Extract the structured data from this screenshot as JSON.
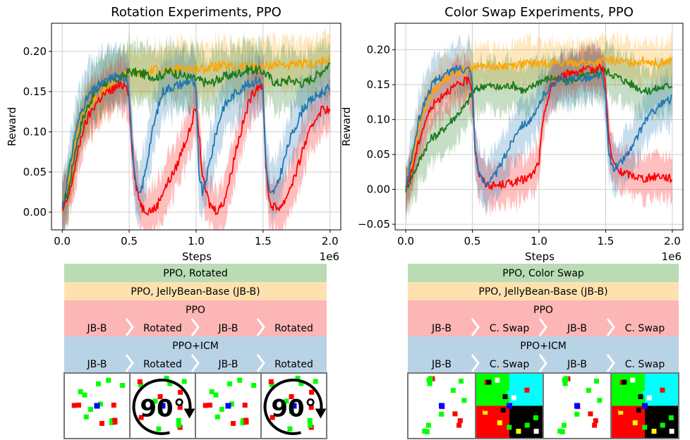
{
  "colors": {
    "ppo": "#ff0000",
    "ppo_icm": "#1f77b4",
    "jbb": "#ffa500",
    "variant": "#1a7a1a",
    "band_green": "#b9dcb4",
    "band_orange": "#fde2b0",
    "band_red": "#fdb6b6",
    "band_blue": "#b9d3e6",
    "grid_white": "#ffffff",
    "grid_green": "#00ff00",
    "grid_red": "#ff0000",
    "grid_blue": "#0000ff",
    "grid_cyan": "#00ffff",
    "grid_black": "#000000",
    "grid_yellow": "#ffff00"
  },
  "chart_data": [
    {
      "type": "line",
      "title": "Rotation Experiments, PPO",
      "xlabel": "Steps",
      "ylabel": "Reward",
      "x_scale_label": "1e6",
      "xlim": [
        -0.08,
        2.08
      ],
      "ylim": [
        -0.022,
        0.235
      ],
      "xticks": [
        0.0,
        0.5,
        1.0,
        1.5,
        2.0
      ],
      "xtick_labels": [
        "0.0",
        "0.5",
        "1.0",
        "1.5",
        "2.0"
      ],
      "yticks": [
        0.0,
        0.05,
        0.1,
        0.15,
        0.2
      ],
      "ytick_labels": [
        "0.00",
        "0.05",
        "0.10",
        "0.15",
        "0.20"
      ],
      "grid": true,
      "series": [
        {
          "name": "PPO, Rotated",
          "color_key": "variant",
          "band": 0.035,
          "x": [
            0,
            0.05,
            0.1,
            0.15,
            0.2,
            0.25,
            0.3,
            0.35,
            0.4,
            0.45,
            0.5,
            0.6,
            0.7,
            0.8,
            0.9,
            1.0,
            1.1,
            1.2,
            1.3,
            1.4,
            1.5,
            1.6,
            1.7,
            1.8,
            1.9,
            2.0
          ],
          "y": [
            0.005,
            0.03,
            0.08,
            0.115,
            0.135,
            0.15,
            0.16,
            0.162,
            0.165,
            0.168,
            0.175,
            0.172,
            0.168,
            0.175,
            0.17,
            0.165,
            0.16,
            0.168,
            0.172,
            0.178,
            0.175,
            0.16,
            0.165,
            0.16,
            0.17,
            0.185
          ]
        },
        {
          "name": "PPO, JellyBean-Base (JB-B)",
          "color_key": "jbb",
          "band": 0.03,
          "x": [
            0,
            0.05,
            0.1,
            0.15,
            0.2,
            0.25,
            0.3,
            0.35,
            0.4,
            0.45,
            0.5,
            0.6,
            0.7,
            0.8,
            0.9,
            1.0,
            1.1,
            1.2,
            1.3,
            1.4,
            1.5,
            1.6,
            1.7,
            1.8,
            1.9,
            2.0
          ],
          "y": [
            0.005,
            0.04,
            0.09,
            0.12,
            0.13,
            0.14,
            0.15,
            0.155,
            0.165,
            0.17,
            0.175,
            0.172,
            0.178,
            0.175,
            0.18,
            0.178,
            0.18,
            0.182,
            0.18,
            0.182,
            0.18,
            0.185,
            0.182,
            0.184,
            0.185,
            0.19
          ]
        },
        {
          "name": "PPO+ICM",
          "color_key": "ppo_icm",
          "band": 0.035,
          "x": [
            0,
            0.05,
            0.1,
            0.15,
            0.2,
            0.25,
            0.3,
            0.35,
            0.4,
            0.45,
            0.48,
            0.5,
            0.52,
            0.55,
            0.58,
            0.62,
            0.66,
            0.7,
            0.75,
            0.8,
            0.9,
            0.97,
            1.0,
            1.02,
            1.05,
            1.1,
            1.15,
            1.2,
            1.3,
            1.4,
            1.47,
            1.5,
            1.52,
            1.55,
            1.6,
            1.7,
            1.8,
            1.9,
            2.0
          ],
          "y": [
            0.005,
            0.05,
            0.1,
            0.13,
            0.145,
            0.155,
            0.16,
            0.165,
            0.17,
            0.165,
            0.17,
            0.15,
            0.09,
            0.03,
            0.02,
            0.05,
            0.09,
            0.12,
            0.15,
            0.155,
            0.16,
            0.165,
            0.15,
            0.05,
            0.022,
            0.06,
            0.1,
            0.13,
            0.15,
            0.16,
            0.165,
            0.155,
            0.06,
            0.02,
            0.03,
            0.09,
            0.13,
            0.145,
            0.155
          ]
        },
        {
          "name": "PPO",
          "color_key": "ppo",
          "band": 0.03,
          "x": [
            0,
            0.05,
            0.1,
            0.15,
            0.2,
            0.25,
            0.3,
            0.35,
            0.4,
            0.45,
            0.48,
            0.5,
            0.52,
            0.55,
            0.6,
            0.65,
            0.7,
            0.75,
            0.8,
            0.85,
            0.9,
            0.95,
            0.98,
            1.0,
            1.02,
            1.05,
            1.1,
            1.15,
            1.2,
            1.25,
            1.3,
            1.35,
            1.4,
            1.45,
            1.48,
            1.5,
            1.52,
            1.55,
            1.6,
            1.65,
            1.7,
            1.75,
            1.8,
            1.85,
            1.9,
            1.95,
            2.0
          ],
          "y": [
            0.0,
            0.02,
            0.06,
            0.1,
            0.12,
            0.135,
            0.145,
            0.15,
            0.155,
            0.158,
            0.16,
            0.145,
            0.08,
            0.03,
            0.005,
            0.002,
            0.005,
            0.025,
            0.04,
            0.055,
            0.08,
            0.1,
            0.12,
            0.13,
            0.1,
            0.04,
            0.01,
            0.002,
            0.01,
            0.04,
            0.08,
            0.11,
            0.14,
            0.155,
            0.16,
            0.15,
            0.06,
            0.01,
            0.005,
            0.01,
            0.03,
            0.05,
            0.08,
            0.1,
            0.12,
            0.13,
            0.125
          ]
        }
      ]
    },
    {
      "type": "line",
      "title": "Color Swap Experiments, PPO",
      "xlabel": "Steps",
      "ylabel": "Reward",
      "x_scale_label": "1e6",
      "xlim": [
        -0.08,
        2.08
      ],
      "ylim": [
        -0.058,
        0.238
      ],
      "xticks": [
        0.0,
        0.5,
        1.0,
        1.5,
        2.0
      ],
      "xtick_labels": [
        "0.0",
        "0.5",
        "1.0",
        "1.5",
        "2.0"
      ],
      "yticks": [
        -0.05,
        0.0,
        0.05,
        0.1,
        0.15,
        0.2
      ],
      "ytick_labels": [
        "−0.05",
        "0.00",
        "0.05",
        "0.10",
        "0.15",
        "0.20"
      ],
      "grid": true,
      "series": [
        {
          "name": "PPO, Color Swap",
          "color_key": "variant",
          "band": 0.035,
          "x": [
            0,
            0.05,
            0.1,
            0.15,
            0.2,
            0.25,
            0.3,
            0.35,
            0.4,
            0.45,
            0.5,
            0.55,
            0.6,
            0.7,
            0.8,
            0.9,
            1.0,
            1.1,
            1.2,
            1.3,
            1.4,
            1.5,
            1.6,
            1.7,
            1.8,
            1.9,
            2.0
          ],
          "y": [
            0.0,
            0.02,
            0.04,
            0.06,
            0.075,
            0.08,
            0.09,
            0.1,
            0.11,
            0.12,
            0.14,
            0.145,
            0.15,
            0.145,
            0.15,
            0.14,
            0.155,
            0.16,
            0.155,
            0.16,
            0.165,
            0.17,
            0.16,
            0.15,
            0.14,
            0.145,
            0.15
          ]
        },
        {
          "name": "PPO, JellyBean-Base (JB-B)",
          "color_key": "jbb",
          "band": 0.03,
          "x": [
            0,
            0.05,
            0.1,
            0.15,
            0.2,
            0.25,
            0.3,
            0.35,
            0.4,
            0.45,
            0.5,
            0.6,
            0.7,
            0.8,
            0.9,
            1.0,
            1.1,
            1.2,
            1.3,
            1.4,
            1.5,
            1.6,
            1.7,
            1.8,
            1.9,
            2.0
          ],
          "y": [
            0.0,
            0.04,
            0.09,
            0.12,
            0.14,
            0.15,
            0.16,
            0.165,
            0.17,
            0.172,
            0.175,
            0.178,
            0.176,
            0.178,
            0.18,
            0.18,
            0.182,
            0.18,
            0.182,
            0.18,
            0.185,
            0.183,
            0.182,
            0.185,
            0.18,
            0.185
          ]
        },
        {
          "name": "PPO+ICM",
          "color_key": "ppo_icm",
          "band": 0.035,
          "x": [
            0,
            0.05,
            0.1,
            0.15,
            0.2,
            0.25,
            0.3,
            0.35,
            0.4,
            0.45,
            0.48,
            0.5,
            0.52,
            0.55,
            0.6,
            0.65,
            0.7,
            0.75,
            0.8,
            0.85,
            0.9,
            0.95,
            0.98,
            1.0,
            1.02,
            1.05,
            1.1,
            1.15,
            1.2,
            1.3,
            1.4,
            1.47,
            1.5,
            1.52,
            1.55,
            1.6,
            1.7,
            1.8,
            1.9,
            2.0
          ],
          "y": [
            0.0,
            0.05,
            0.1,
            0.13,
            0.15,
            0.16,
            0.165,
            0.17,
            0.175,
            0.172,
            0.175,
            0.15,
            0.06,
            0.02,
            0.01,
            0.015,
            0.03,
            0.05,
            0.07,
            0.09,
            0.095,
            0.1,
            0.11,
            0.12,
            0.13,
            0.14,
            0.15,
            0.16,
            0.155,
            0.16,
            0.16,
            0.165,
            0.13,
            0.06,
            0.03,
            0.035,
            0.06,
            0.1,
            0.12,
            0.13
          ]
        },
        {
          "name": "PPO",
          "color_key": "ppo",
          "band": 0.03,
          "x": [
            0,
            0.05,
            0.1,
            0.15,
            0.2,
            0.25,
            0.3,
            0.35,
            0.4,
            0.45,
            0.48,
            0.5,
            0.52,
            0.55,
            0.6,
            0.65,
            0.7,
            0.75,
            0.8,
            0.85,
            0.9,
            0.95,
            1.0,
            1.02,
            1.05,
            1.1,
            1.15,
            1.2,
            1.25,
            1.3,
            1.35,
            1.4,
            1.45,
            1.48,
            1.5,
            1.52,
            1.55,
            1.6,
            1.7,
            1.8,
            1.9,
            2.0
          ],
          "y": [
            0.0,
            0.03,
            0.07,
            0.1,
            0.12,
            0.13,
            0.14,
            0.145,
            0.15,
            0.155,
            0.158,
            0.14,
            0.06,
            0.02,
            0.008,
            0.005,
            0.006,
            0.008,
            0.01,
            0.012,
            0.015,
            0.02,
            0.04,
            0.08,
            0.12,
            0.15,
            0.16,
            0.165,
            0.168,
            0.17,
            0.17,
            0.172,
            0.175,
            0.172,
            0.15,
            0.08,
            0.04,
            0.025,
            0.02,
            0.015,
            0.02,
            0.015
          ]
        }
      ]
    }
  ],
  "legends": [
    {
      "bands": [
        {
          "label": "PPO, Rotated",
          "color_key": "band_green",
          "segments": []
        },
        {
          "label": "PPO, JellyBean-Base (JB-B)",
          "color_key": "band_orange",
          "segments": []
        },
        {
          "label": "PPO",
          "color_key": "band_red",
          "segments": [
            "JB-B",
            "Rotated",
            "JB-B",
            "Rotated"
          ]
        },
        {
          "label": "PPO+ICM",
          "color_key": "band_blue",
          "segments": [
            "JB-B",
            "Rotated",
            "JB-B",
            "Rotated"
          ]
        }
      ],
      "tiles": [
        {
          "kind": "base",
          "overlay": ""
        },
        {
          "kind": "rotated",
          "overlay": "90°"
        },
        {
          "kind": "base",
          "overlay": ""
        },
        {
          "kind": "rotated",
          "overlay": "90°"
        }
      ]
    },
    {
      "bands": [
        {
          "label": "PPO, Color Swap",
          "color_key": "band_green",
          "segments": []
        },
        {
          "label": "PPO, JellyBean-Base (JB-B)",
          "color_key": "band_orange",
          "segments": []
        },
        {
          "label": "PPO",
          "color_key": "band_red",
          "segments": [
            "JB-B",
            "C. Swap",
            "JB-B",
            "C. Swap"
          ]
        },
        {
          "label": "PPO+ICM",
          "color_key": "band_blue",
          "segments": [
            "JB-B",
            "C. Swap",
            "JB-B",
            "C. Swap"
          ]
        }
      ],
      "tiles": [
        {
          "kind": "base",
          "overlay": ""
        },
        {
          "kind": "swap",
          "overlay": ""
        },
        {
          "kind": "base",
          "overlay": ""
        },
        {
          "kind": "swap",
          "overlay": ""
        }
      ]
    }
  ]
}
